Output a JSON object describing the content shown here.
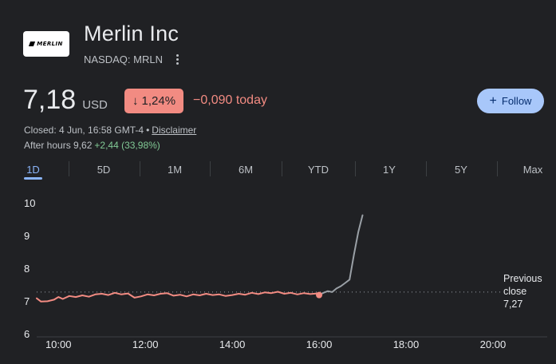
{
  "header": {
    "logo_text": "MERLIN",
    "company_name": "Merlin Inc",
    "ticker": "NASDAQ: MRLN"
  },
  "quote": {
    "price": "7,18",
    "currency": "USD",
    "change_percent": "1,24%",
    "change_today": "−0,090 today",
    "follow_label": "Follow",
    "closed_text": "Closed: 4 Jun, 16:58 GMT-4",
    "separator": "•",
    "disclaimer": "Disclaimer",
    "after_hours_label": "After hours 9,62",
    "after_hours_change": "+2,44 (33,98%)"
  },
  "tabs": [
    "1D",
    "5D",
    "1M",
    "6M",
    "YTD",
    "1Y",
    "5Y",
    "Max"
  ],
  "active_tab": "1D",
  "colors": {
    "negative": "#f28b82",
    "positive": "#81c995",
    "accent": "#8ab4f8",
    "after_hours_line": "#9aa0a6"
  },
  "previous_close": {
    "label_line1": "Previous",
    "label_line2": "close",
    "value": "7,27"
  },
  "chart_data": {
    "type": "line",
    "ylim": [
      6,
      10
    ],
    "yticks": [
      "6",
      "7",
      "8",
      "9",
      "10"
    ],
    "xticks": [
      "10:00",
      "12:00",
      "14:00",
      "16:00",
      "18:00",
      "20:00"
    ],
    "xlim_hours": [
      9.5,
      21.25
    ],
    "reference_line": 7.27,
    "series": [
      {
        "session": "regular",
        "x": [
          9.5,
          9.6,
          9.75,
          9.9,
          10.0,
          10.1,
          10.25,
          10.4,
          10.55,
          10.7,
          10.85,
          11.0,
          11.15,
          11.3,
          11.45,
          11.6,
          11.75,
          11.9,
          12.05,
          12.2,
          12.35,
          12.5,
          12.65,
          12.8,
          12.95,
          13.1,
          13.25,
          13.4,
          13.55,
          13.7,
          13.85,
          14.0,
          14.15,
          14.3,
          14.45,
          14.6,
          14.75,
          14.9,
          15.05,
          15.2,
          15.35,
          15.5,
          15.65,
          15.8,
          15.95,
          16.0
        ],
        "values": [
          7.08,
          6.98,
          6.99,
          7.04,
          7.12,
          7.06,
          7.15,
          7.12,
          7.17,
          7.13,
          7.2,
          7.22,
          7.18,
          7.25,
          7.2,
          7.23,
          7.1,
          7.14,
          7.2,
          7.17,
          7.22,
          7.24,
          7.16,
          7.19,
          7.14,
          7.2,
          7.17,
          7.22,
          7.18,
          7.2,
          7.15,
          7.18,
          7.22,
          7.19,
          7.25,
          7.21,
          7.26,
          7.24,
          7.28,
          7.22,
          7.25,
          7.2,
          7.24,
          7.21,
          7.23,
          7.18
        ]
      },
      {
        "session": "after_hours",
        "x": [
          16.0,
          16.1,
          16.2,
          16.3,
          16.4,
          16.5,
          16.6,
          16.7,
          16.8,
          16.9,
          17.0
        ],
        "values": [
          7.18,
          7.25,
          7.3,
          7.27,
          7.38,
          7.45,
          7.55,
          7.65,
          8.4,
          9.1,
          9.62
        ]
      }
    ]
  }
}
